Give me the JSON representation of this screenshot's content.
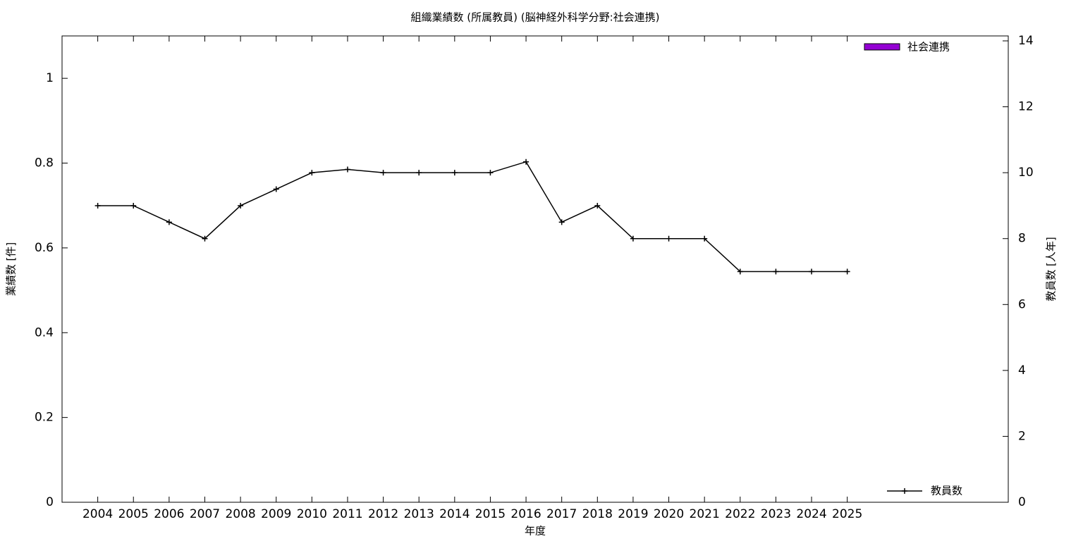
{
  "chart_data": {
    "type": "bar_line",
    "title": "組織業績数 (所属教員) (脳神経外科学分野:社会連携)",
    "x_label": "年度",
    "y_label": "業績数 [件]",
    "y2_label": "教員数 [人年]",
    "categories": [
      "2004",
      "2005",
      "2006",
      "2007",
      "2008",
      "2009",
      "2010",
      "2011",
      "2012",
      "2013",
      "2014",
      "2015",
      "2016",
      "2017",
      "2018",
      "2019",
      "2020",
      "2021",
      "2022",
      "2023",
      "2024",
      "2025"
    ],
    "ylim": [
      0,
      1.1
    ],
    "yticks": [
      0,
      0.2,
      0.4,
      0.6,
      0.8,
      1
    ],
    "y2lim": [
      0,
      14.15
    ],
    "y2ticks": [
      0,
      2,
      4,
      6,
      8,
      10,
      12,
      14
    ],
    "series": [
      {
        "name": "社会連携",
        "type": "bar",
        "color": "#9400d3",
        "values": [
          0,
          0,
          0,
          0,
          0,
          0,
          0,
          0,
          0,
          0,
          0,
          0,
          0,
          0,
          0,
          0,
          0,
          0,
          0,
          0,
          0,
          0
        ]
      },
      {
        "name": "教員数",
        "type": "line",
        "axis": "y2",
        "color": "#000000",
        "values": [
          9,
          9,
          8.5,
          8,
          9,
          9.5,
          10,
          10.1,
          10,
          10,
          10,
          10,
          10.33,
          8.5,
          9,
          8,
          8,
          8,
          7,
          7,
          7,
          7
        ]
      }
    ]
  }
}
